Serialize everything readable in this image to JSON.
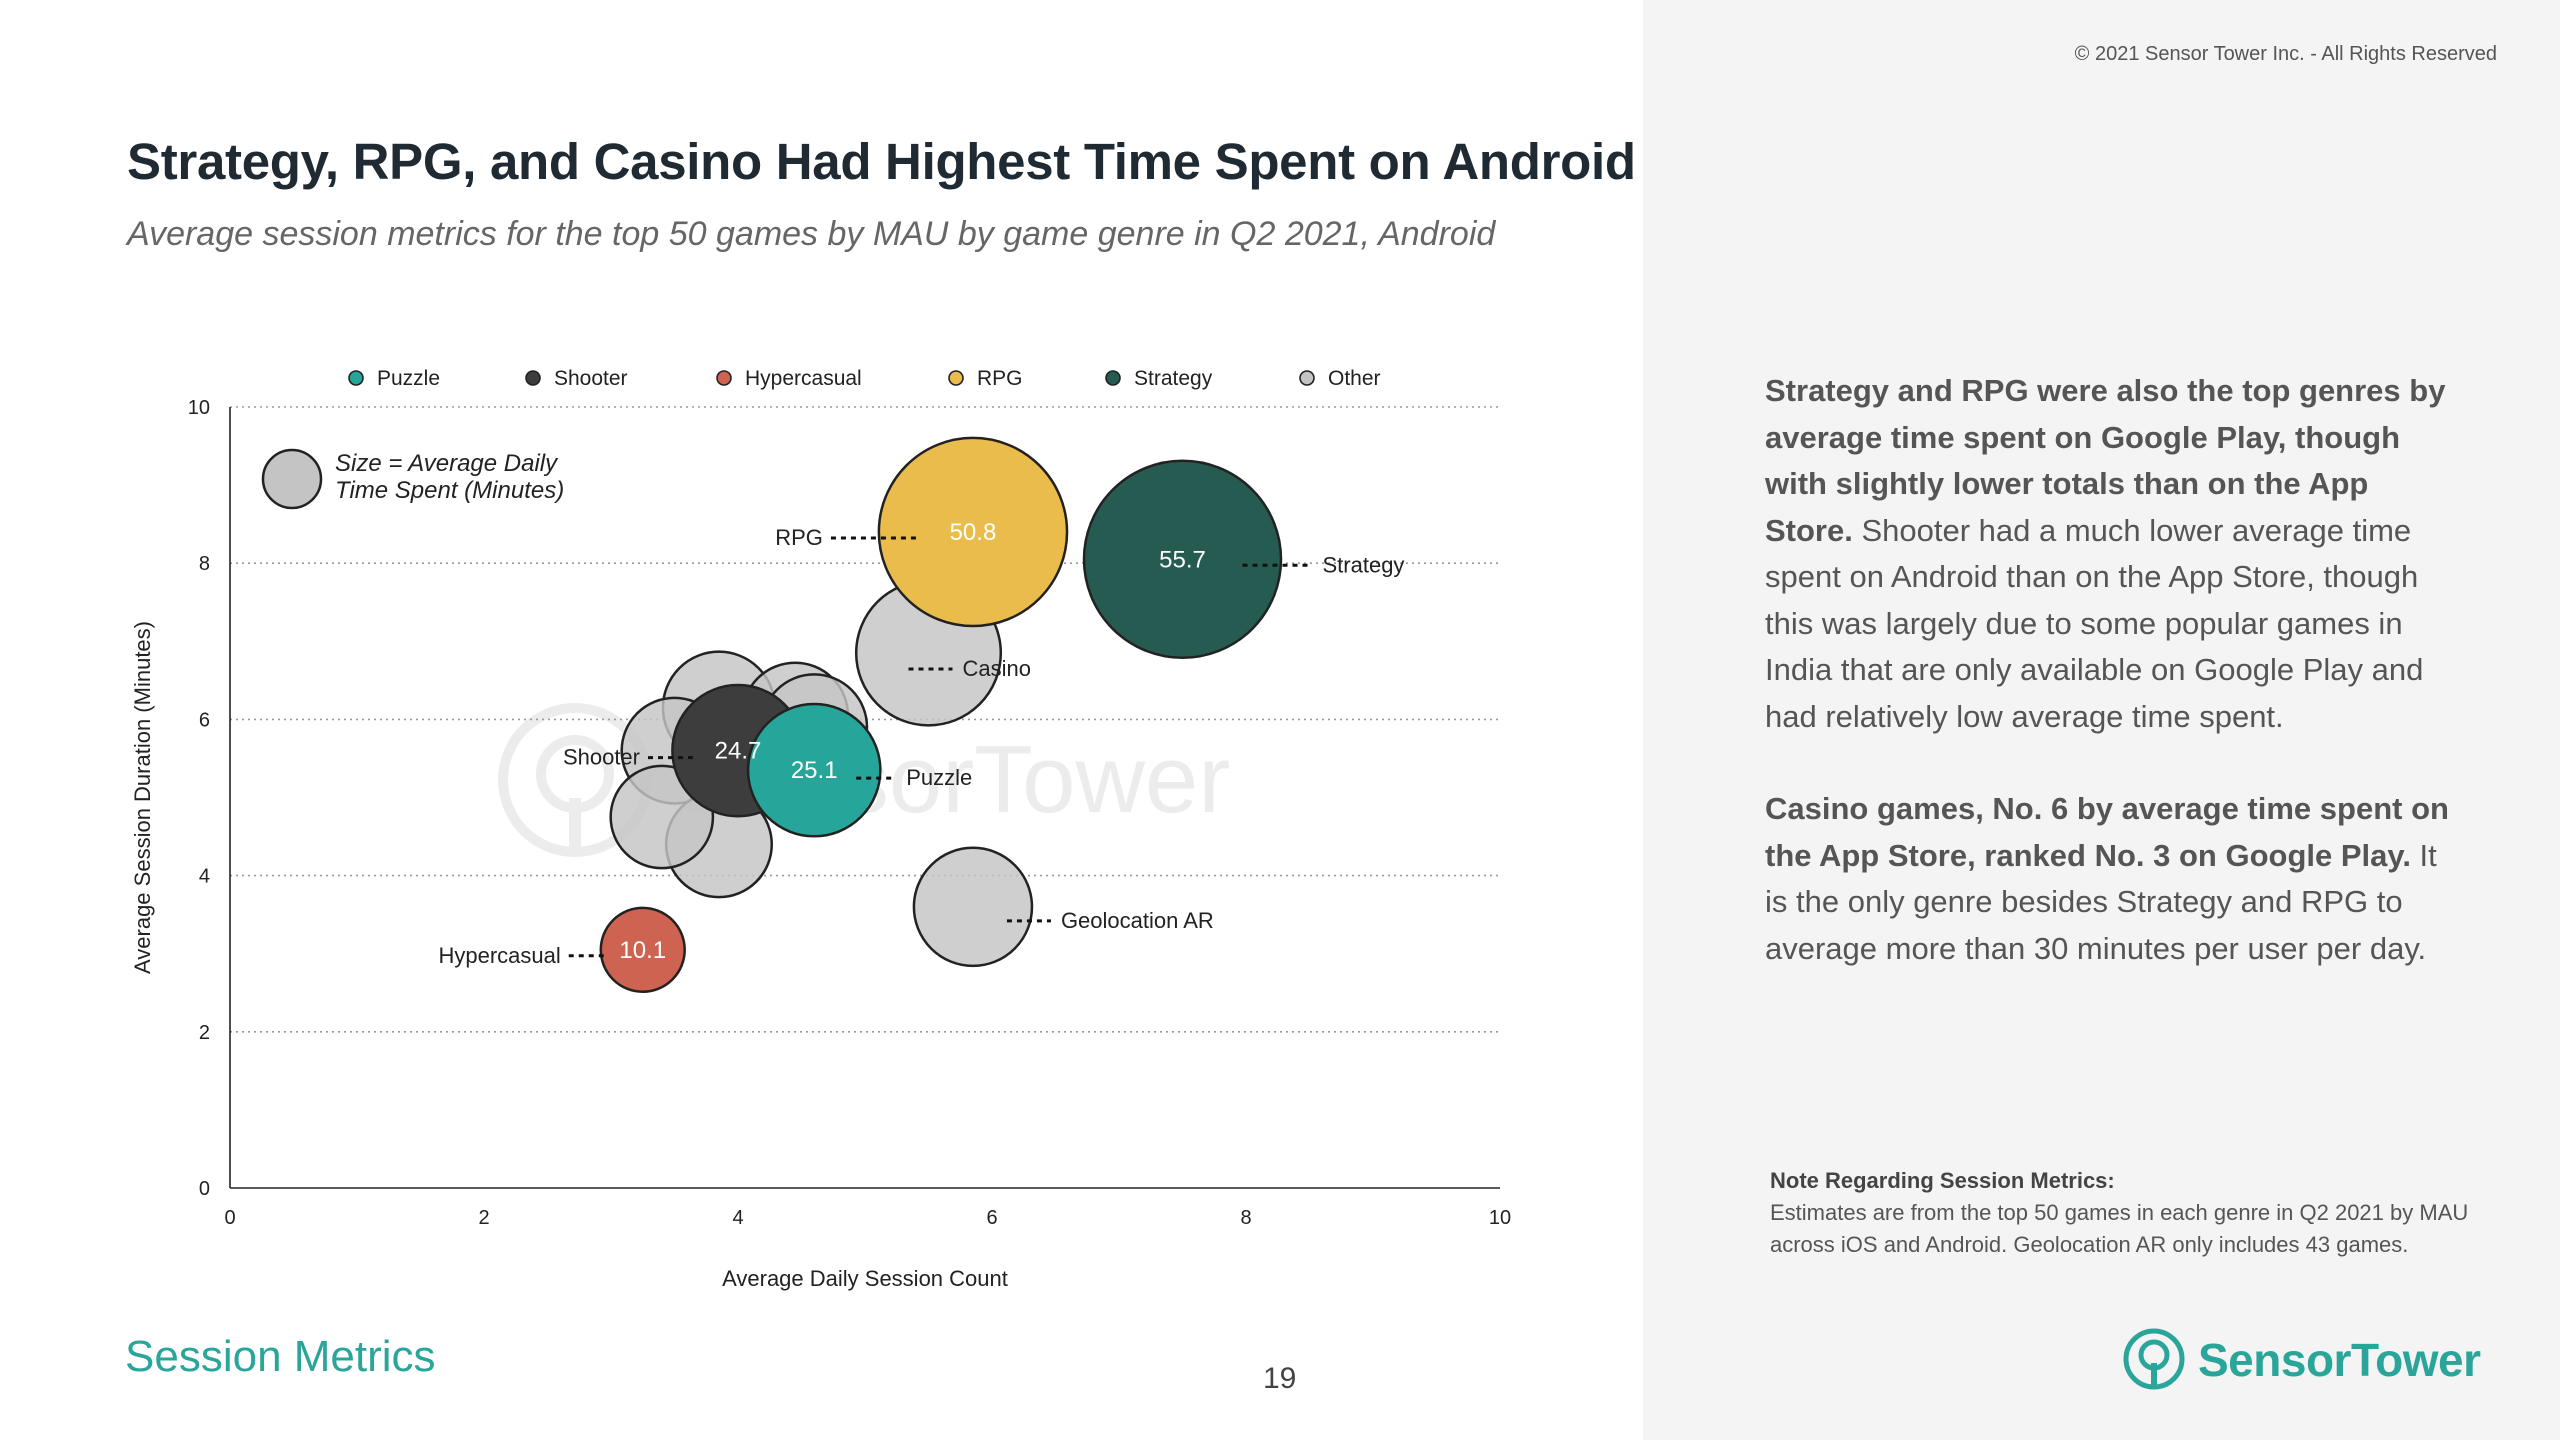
{
  "copyright": "© 2021 Sensor Tower Inc. - All Rights Reserved",
  "title": "Strategy, RPG, and Casino Had Highest Time Spent on Android",
  "subtitle": "Average session metrics for the top 50 games by MAU by game genre in Q2 2021, Android",
  "insight1": {
    "bold": "Strategy and RPG were also the top genres by average time spent on Google Play, though with slightly lower totals than on the App Store.",
    "text": " Shooter had a much lower average time spent on Android than on the App Store, though this was largely due to some popular games in India that are only available on Google Play and had relatively low average time spent."
  },
  "insight2": {
    "bold": "Casino games, No. 6 by average time spent on the App Store, ranked No. 3 on Google Play.",
    "text": " It is the only genre besides Strategy and RPG to average more than 30 minutes per user per day."
  },
  "note": {
    "title": "Note Regarding Session Metrics:",
    "text": "Estimates are from the top 50 games in each genre in Q2 2021 by MAU across iOS and Android. Geolocation AR only includes 43 games."
  },
  "section_name": "Session Metrics",
  "page_number": "19",
  "brand": {
    "name": "SensorTower",
    "color": "#2aa59a"
  },
  "chart_data": {
    "type": "scatter",
    "subtype": "bubble",
    "xlabel": "Average Daily Session Count",
    "ylabel": "Average Session Duration (Minutes)",
    "xlim": [
      0,
      10
    ],
    "ylim": [
      0,
      10
    ],
    "xticks": [
      0,
      2,
      4,
      6,
      8,
      10
    ],
    "yticks": [
      0,
      2,
      4,
      6,
      8,
      10
    ],
    "grid": "horizontal-dotted",
    "watermark": "SensorTower",
    "size_legend": "Size = Average Daily Time Spent (Minutes)",
    "legend_position": "top",
    "legend": [
      {
        "name": "Puzzle",
        "color": "#26a69a"
      },
      {
        "name": "Shooter",
        "color": "#3d3d3d"
      },
      {
        "name": "Hypercasual",
        "color": "#cf6352"
      },
      {
        "name": "RPG",
        "color": "#e9bc4c"
      },
      {
        "name": "Strategy",
        "color": "#255b50"
      },
      {
        "name": "Other",
        "color": "#c4c4c4"
      }
    ],
    "points": [
      {
        "genre": "Other",
        "x": 3.4,
        "y": 4.75,
        "size": 15.0,
        "label": "",
        "value_label": ""
      },
      {
        "genre": "Other",
        "x": 3.85,
        "y": 6.15,
        "size": 18.0,
        "label": "",
        "value_label": ""
      },
      {
        "genre": "Other",
        "x": 3.5,
        "y": 5.6,
        "size": 16.0,
        "label": "",
        "value_label": ""
      },
      {
        "genre": "Other",
        "x": 4.45,
        "y": 6.05,
        "size": 16.0,
        "label": "",
        "value_label": ""
      },
      {
        "genre": "Other",
        "x": 3.85,
        "y": 4.4,
        "size": 16.0,
        "label": "",
        "value_label": ""
      },
      {
        "genre": "Other",
        "x": 4.6,
        "y": 5.9,
        "size": 16.0,
        "label": "",
        "value_label": ""
      },
      {
        "genre": "Other",
        "x": 5.5,
        "y": 6.85,
        "size": 30.0,
        "label": "Casino",
        "value_label": ""
      },
      {
        "genre": "Other",
        "x": 5.85,
        "y": 3.6,
        "size": 20.0,
        "label": "Geolocation AR",
        "value_label": ""
      },
      {
        "genre": "Shooter",
        "x": 4.0,
        "y": 5.6,
        "size": 24.7,
        "label": "Shooter",
        "value_label": "24.7"
      },
      {
        "genre": "Puzzle",
        "x": 4.6,
        "y": 5.35,
        "size": 25.1,
        "label": "Puzzle",
        "value_label": "25.1"
      },
      {
        "genre": "Hypercasual",
        "x": 3.25,
        "y": 3.05,
        "size": 10.1,
        "label": "Hypercasual",
        "value_label": "10.1"
      },
      {
        "genre": "RPG",
        "x": 5.85,
        "y": 8.4,
        "size": 50.8,
        "label": "RPG",
        "value_label": "50.8"
      },
      {
        "genre": "Strategy",
        "x": 7.5,
        "y": 8.05,
        "size": 55.7,
        "label": "Strategy",
        "value_label": "55.7"
      }
    ]
  }
}
